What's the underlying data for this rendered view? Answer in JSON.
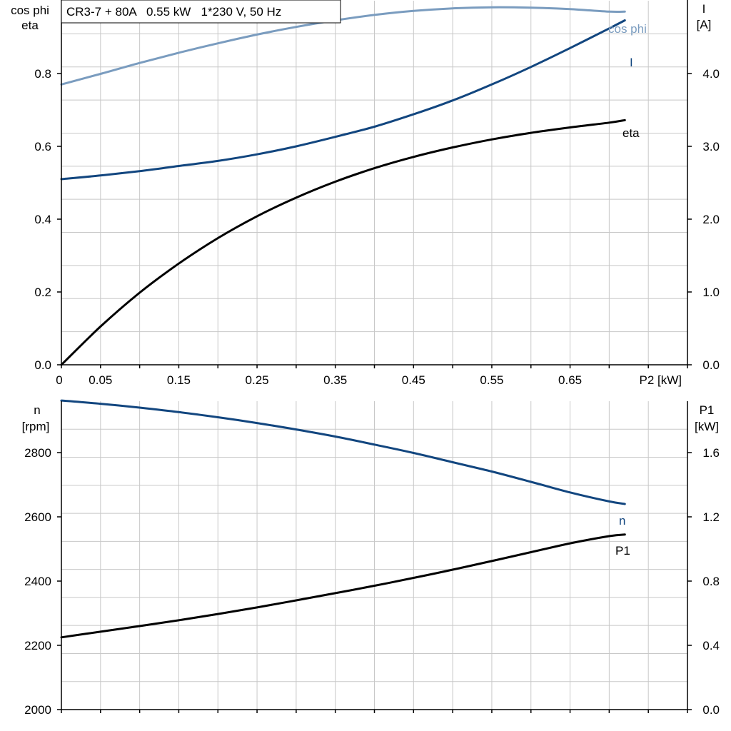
{
  "title": "CR3-7 + 80A   0.55 kW   1*230 V, 50 Hz",
  "colors": {
    "cos_phi": "#7a9cbf",
    "current": "#12467f",
    "eta": "#000000",
    "speed": "#12467f",
    "p1": "#000000",
    "grid": "#c8c8c8"
  },
  "chart_data": [
    {
      "type": "line",
      "x_axis": {
        "label": "P2 [kW]",
        "range": [
          0,
          0.8
        ],
        "ticks": [
          0,
          0.05,
          0.15,
          0.25,
          0.35,
          0.45,
          0.55,
          0.65
        ],
        "tick_labels": [
          "0",
          "0.05",
          "0.15",
          "0.25",
          "0.35",
          "0.45",
          "0.55",
          "0.65"
        ]
      },
      "y_left": {
        "label_line1": "cos phi",
        "label_line2": "eta",
        "range": [
          0,
          1.0
        ],
        "ticks": [
          0,
          0.2,
          0.4,
          0.6,
          0.8
        ],
        "tick_labels": [
          "0.0",
          "0.2",
          "0.4",
          "0.6",
          "0.8"
        ]
      },
      "y_right": {
        "label_line1": "I",
        "label_line2": "[A]",
        "range": [
          0,
          5.0
        ],
        "ticks": [
          0,
          1,
          2,
          3,
          4
        ],
        "tick_labels": [
          "0.0",
          "1.0",
          "2.0",
          "3.0",
          "4.0"
        ]
      },
      "grid": true,
      "series": [
        {
          "name": "cos phi",
          "axis": "left",
          "color_key": "cos_phi",
          "x": [
            0,
            0.05,
            0.1,
            0.15,
            0.2,
            0.25,
            0.3,
            0.35,
            0.4,
            0.45,
            0.5,
            0.55,
            0.6,
            0.65,
            0.7,
            0.72
          ],
          "y": [
            0.77,
            0.799,
            0.829,
            0.857,
            0.883,
            0.907,
            0.928,
            0.946,
            0.961,
            0.972,
            0.979,
            0.982,
            0.981,
            0.977,
            0.97,
            0.98
          ]
        },
        {
          "name": "I",
          "axis": "right",
          "color_key": "current",
          "x": [
            0,
            0.05,
            0.1,
            0.15,
            0.2,
            0.25,
            0.3,
            0.35,
            0.4,
            0.45,
            0.5,
            0.55,
            0.6,
            0.65,
            0.7,
            0.72
          ],
          "y": [
            2.55,
            2.6,
            2.66,
            2.73,
            2.8,
            2.89,
            3.0,
            3.13,
            3.27,
            3.44,
            3.63,
            3.85,
            4.09,
            4.35,
            4.62,
            4.73
          ]
        },
        {
          "name": "eta",
          "axis": "left",
          "color_key": "eta",
          "x": [
            0,
            0.05,
            0.1,
            0.15,
            0.2,
            0.25,
            0.3,
            0.35,
            0.4,
            0.45,
            0.5,
            0.55,
            0.6,
            0.65,
            0.7,
            0.72
          ],
          "y": [
            0.0,
            0.105,
            0.198,
            0.278,
            0.348,
            0.408,
            0.459,
            0.503,
            0.54,
            0.571,
            0.597,
            0.619,
            0.637,
            0.652,
            0.665,
            0.672
          ]
        }
      ]
    },
    {
      "type": "line",
      "x_axis": {
        "range": [
          0,
          0.8
        ]
      },
      "y_left": {
        "label_line1": "n",
        "label_line2": "[rpm]",
        "range": [
          2000,
          2960
        ],
        "ticks": [
          2000,
          2200,
          2400,
          2600,
          2800
        ],
        "tick_labels": [
          "2000",
          "2200",
          "2400",
          "2600",
          "2800"
        ]
      },
      "y_right": {
        "label_line1": "P1",
        "label_line2": "[kW]",
        "range": [
          0,
          1.92
        ],
        "ticks": [
          0,
          0.4,
          0.8,
          1.2,
          1.6
        ],
        "tick_labels": [
          "0.0",
          "0.4",
          "0.8",
          "1.2",
          "1.6"
        ]
      },
      "grid": true,
      "series": [
        {
          "name": "n",
          "axis": "left",
          "color_key": "speed",
          "x": [
            0,
            0.05,
            0.1,
            0.15,
            0.2,
            0.25,
            0.3,
            0.35,
            0.4,
            0.45,
            0.5,
            0.55,
            0.6,
            0.65,
            0.7,
            0.72
          ],
          "y": [
            2962,
            2952,
            2940,
            2926,
            2910,
            2892,
            2872,
            2850,
            2825,
            2799,
            2770,
            2741,
            2709,
            2676,
            2648,
            2640
          ]
        },
        {
          "name": "P1",
          "axis": "right",
          "color_key": "p1",
          "x": [
            0,
            0.05,
            0.1,
            0.15,
            0.2,
            0.25,
            0.3,
            0.35,
            0.4,
            0.45,
            0.5,
            0.55,
            0.6,
            0.65,
            0.7,
            0.72
          ],
          "y": [
            0.45,
            0.485,
            0.52,
            0.556,
            0.595,
            0.636,
            0.68,
            0.725,
            0.771,
            0.82,
            0.871,
            0.925,
            0.98,
            1.035,
            1.08,
            1.09
          ]
        }
      ]
    }
  ]
}
